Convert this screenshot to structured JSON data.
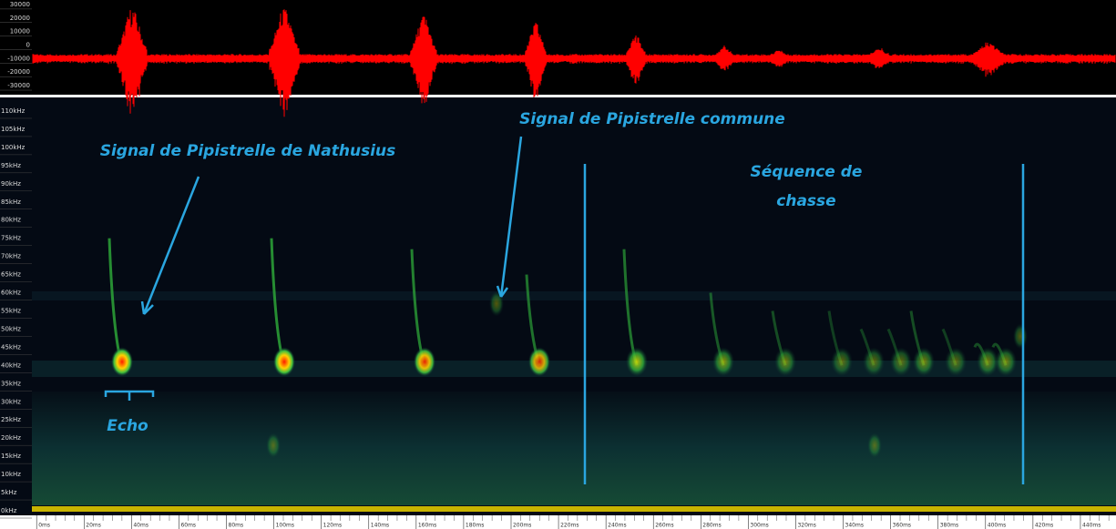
{
  "chart_data": [
    {
      "type": "waveform",
      "ylim": [
        -36700,
        33300
      ],
      "yticks": [
        30000,
        20000,
        10000,
        0,
        -10000,
        -20000,
        -30000
      ],
      "color": "#ff0000"
    },
    {
      "type": "spectrogram",
      "ylim": [
        -1,
        113
      ],
      "yticks": [
        {
          "value": 0,
          "label": "0kHz"
        },
        {
          "value": 5,
          "label": "5kHz"
        },
        {
          "value": 10,
          "label": "10kHz"
        },
        {
          "value": 15,
          "label": "15kHz"
        },
        {
          "value": 20,
          "label": "20kHz"
        },
        {
          "value": 25,
          "label": "25kHz"
        },
        {
          "value": 30,
          "label": "30kHz"
        },
        {
          "value": 35,
          "label": "35kHz"
        },
        {
          "value": 40,
          "label": "40kHz"
        },
        {
          "value": 45,
          "label": "45kHz"
        },
        {
          "value": 50,
          "label": "50kHz"
        },
        {
          "value": 55,
          "label": "55kHz"
        },
        {
          "value": 60,
          "label": "60kHz"
        },
        {
          "value": 65,
          "label": "65kHz"
        },
        {
          "value": 70,
          "label": "70kHz"
        },
        {
          "value": 75,
          "label": "75kHz"
        },
        {
          "value": 80,
          "label": "80kHz"
        },
        {
          "value": 85,
          "label": "85kHz"
        },
        {
          "value": 90,
          "label": "90kHz"
        },
        {
          "value": 95,
          "label": "95kHz"
        },
        {
          "value": 100,
          "label": "100kHz"
        },
        {
          "value": 105,
          "label": "105kHz"
        },
        {
          "value": 110,
          "label": "110kHz"
        }
      ],
      "xlim": [
        -2,
        455
      ],
      "xticks": [
        {
          "value": 0,
          "label": "0ms"
        },
        {
          "value": 20,
          "label": "20ms"
        },
        {
          "value": 40,
          "label": "40ms"
        },
        {
          "value": 60,
          "label": "60ms"
        },
        {
          "value": 80,
          "label": "80ms"
        },
        {
          "value": 100,
          "label": "100ms"
        },
        {
          "value": 120,
          "label": "120ms"
        },
        {
          "value": 140,
          "label": "140ms"
        },
        {
          "value": 160,
          "label": "160ms"
        },
        {
          "value": 180,
          "label": "180ms"
        },
        {
          "value": 200,
          "label": "200ms"
        },
        {
          "value": 220,
          "label": "220ms"
        },
        {
          "value": 240,
          "label": "240ms"
        },
        {
          "value": 260,
          "label": "260ms"
        },
        {
          "value": 280,
          "label": "280ms"
        },
        {
          "value": 300,
          "label": "300ms"
        },
        {
          "value": 320,
          "label": "320ms"
        },
        {
          "value": 340,
          "label": "340ms"
        },
        {
          "value": 360,
          "label": "360ms"
        },
        {
          "value": 380,
          "label": "380ms"
        },
        {
          "value": 400,
          "label": "400ms"
        },
        {
          "value": 420,
          "label": "420ms"
        },
        {
          "value": 440,
          "label": "440ms"
        }
      ],
      "annotations": [
        "Signal de Pipistrelle de Nathusius",
        "Signal de Pipistrelle commune",
        "Séquence de",
        "chasse",
        "Echo"
      ]
    }
  ]
}
